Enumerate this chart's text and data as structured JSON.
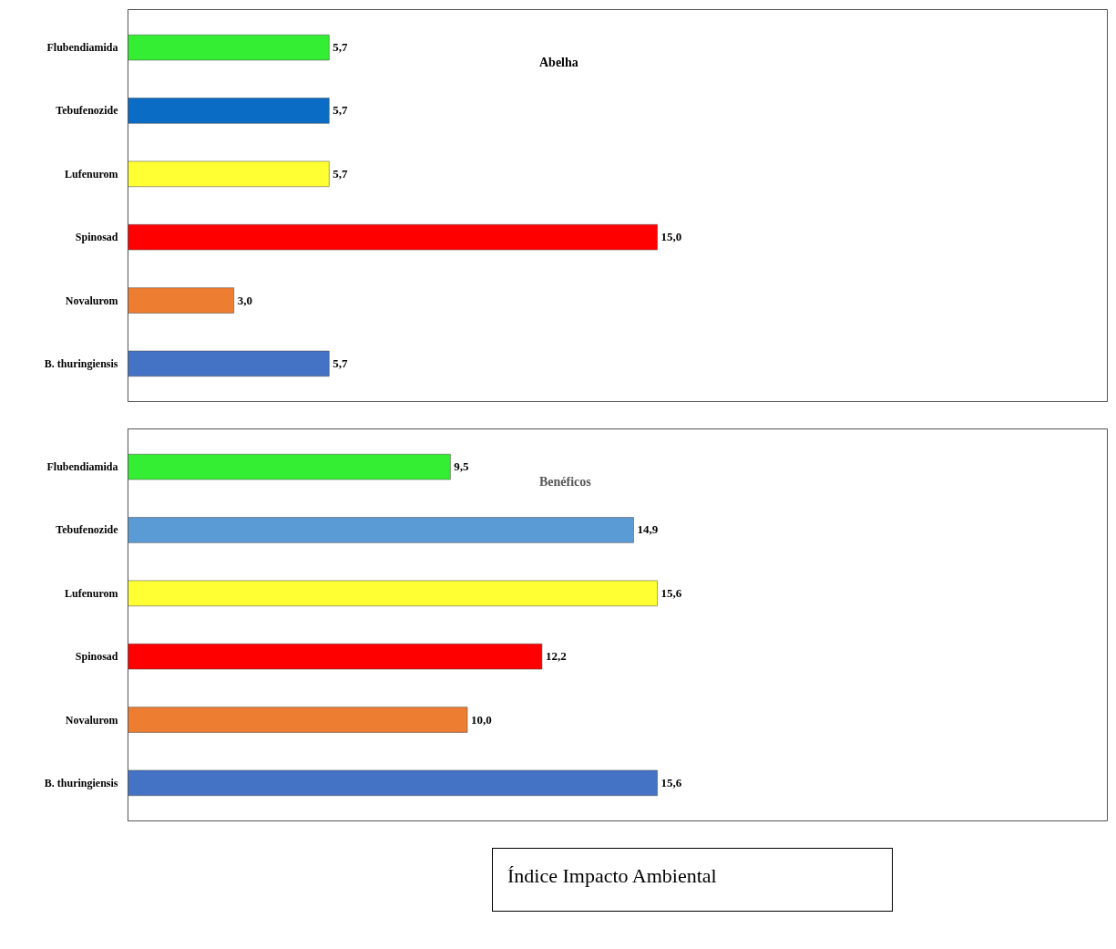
{
  "chart_data": [
    {
      "type": "bar",
      "orientation": "horizontal",
      "title": "Abelha",
      "tick_labels": "y",
      "grid": false,
      "categories": [
        "Flubendiamida",
        "Tebufenozide",
        "Lufenurom",
        "Spinosad",
        "Novalurom",
        "B. thuringiensis"
      ],
      "values": [
        5.7,
        5.7,
        5.7,
        15.0,
        3.0,
        5.7
      ],
      "value_labels": [
        "5,7",
        "5,7",
        "5,7",
        "15,0",
        "3,0",
        "5,7"
      ],
      "colors": [
        "#33ee33",
        "#0a6cc4",
        "#ffff33",
        "#ff0000",
        "#ed7d31",
        "#4472c4"
      ]
    },
    {
      "type": "bar",
      "orientation": "horizontal",
      "title": "Benéficos",
      "tick_labels": "y",
      "grid": false,
      "categories": [
        "Flubendiamida",
        "Tebufenozide",
        "Lufenurom",
        "Spinosad",
        "Novalurom",
        "B. thuringiensis"
      ],
      "values": [
        9.5,
        14.9,
        15.6,
        12.2,
        10.0,
        15.6
      ],
      "value_labels": [
        "9,5",
        "14,9",
        "15,6",
        "12,2",
        "10,0",
        "15,6"
      ],
      "colors": [
        "#33ee33",
        "#5b9bd5",
        "#ffff33",
        "#ff0000",
        "#ed7d31",
        "#4472c4"
      ],
      "annotations": [
        "Índice Impacto Ambiental"
      ]
    }
  ]
}
